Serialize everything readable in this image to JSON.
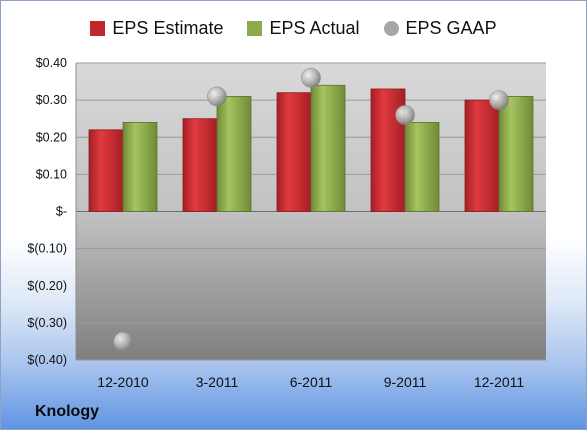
{
  "company": "Knology",
  "legend": [
    {
      "label": "EPS Estimate",
      "color": "#c0282d",
      "shape": "square"
    },
    {
      "label": "EPS Actual",
      "color": "#8cab4a",
      "shape": "square"
    },
    {
      "label": "EPS GAAP",
      "color": "#a6a6a6",
      "shape": "circle"
    }
  ],
  "chart_data": {
    "type": "bar",
    "categories": [
      "12-2010",
      "3-2011",
      "6-2011",
      "9-2011",
      "12-2011"
    ],
    "series": [
      {
        "name": "EPS Estimate",
        "type": "bar",
        "color": "#c0282d",
        "values": [
          0.22,
          0.25,
          0.32,
          0.33,
          0.3
        ]
      },
      {
        "name": "EPS Actual",
        "type": "bar",
        "color": "#8cab4a",
        "values": [
          0.24,
          0.31,
          0.34,
          0.24,
          0.31
        ]
      },
      {
        "name": "EPS GAAP",
        "type": "scatter",
        "color": "#a6a6a6",
        "values": [
          -0.35,
          0.31,
          0.36,
          0.26,
          0.3
        ]
      }
    ],
    "ylim": [
      -0.4,
      0.4
    ],
    "yticks": [
      {
        "value": 0.4,
        "label": "$0.40"
      },
      {
        "value": 0.3,
        "label": "$0.30"
      },
      {
        "value": 0.2,
        "label": "$0.20"
      },
      {
        "value": 0.1,
        "label": "$0.10"
      },
      {
        "value": 0.0,
        "label": "$-"
      },
      {
        "value": -0.1,
        "label": "$(0.10)"
      },
      {
        "value": -0.2,
        "label": "$(0.20)"
      },
      {
        "value": -0.3,
        "label": "$(0.30)"
      },
      {
        "value": -0.4,
        "label": "$(0.40)"
      }
    ],
    "legend_position": "top",
    "grid": true
  }
}
